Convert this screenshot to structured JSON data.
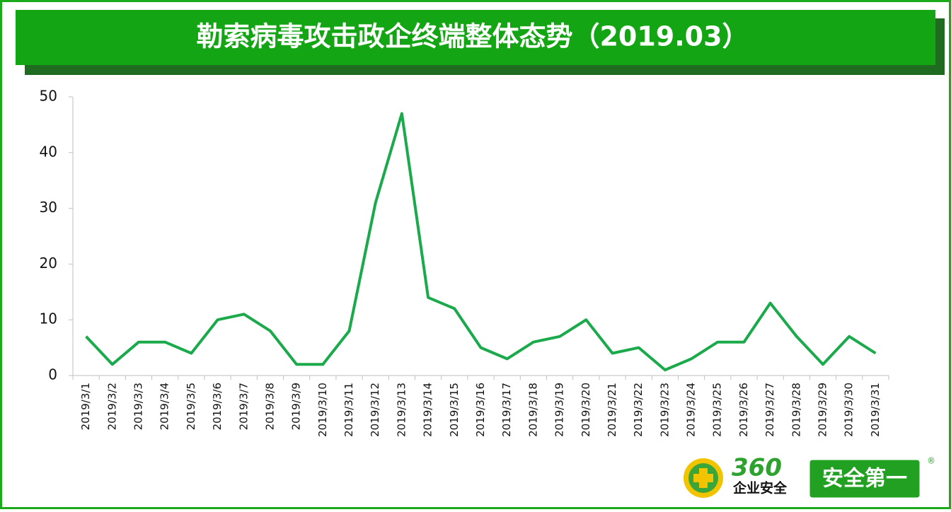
{
  "chart_data": {
    "type": "line",
    "title": "勒索病毒攻击政企终端整体态势（2019.03）",
    "categories": [
      "2019/3/1",
      "2019/3/2",
      "2019/3/3",
      "2019/3/4",
      "2019/3/5",
      "2019/3/6",
      "2019/3/7",
      "2019/3/8",
      "2019/3/9",
      "2019/3/10",
      "2019/3/11",
      "2019/3/12",
      "2019/3/13",
      "2019/3/14",
      "2019/3/15",
      "2019/3/16",
      "2019/3/17",
      "2019/3/18",
      "2019/3/19",
      "2019/3/20",
      "2019/3/21",
      "2019/3/22",
      "2019/3/23",
      "2019/3/24",
      "2019/3/25",
      "2019/3/26",
      "2019/3/27",
      "2019/3/28",
      "2019/3/29",
      "2019/3/30",
      "2019/3/31"
    ],
    "values": [
      7,
      2,
      6,
      6,
      4,
      10,
      11,
      8,
      2,
      2,
      8,
      31,
      47,
      14,
      12,
      5,
      3,
      6,
      7,
      10,
      4,
      5,
      1,
      3,
      6,
      6,
      13,
      7,
      2,
      7,
      4
    ],
    "color": "#1aaa4b",
    "ylim": [
      0,
      50
    ],
    "yticks": [
      0,
      10,
      20,
      30,
      40,
      50
    ],
    "grid": false
  },
  "logo": {
    "brand": "360",
    "subtitle": "企业安全",
    "slogan": "安全第一",
    "mark": "®"
  }
}
